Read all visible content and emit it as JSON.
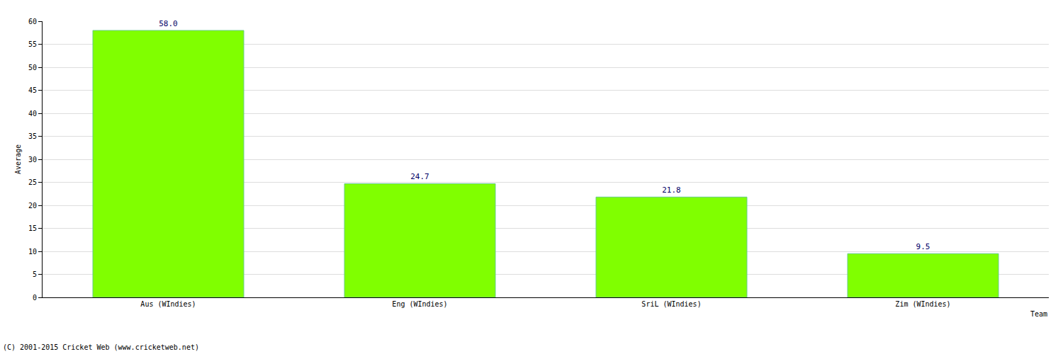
{
  "chart_data": {
    "type": "bar",
    "categories": [
      "Aus (WIndies)",
      "Eng (WIndies)",
      "SriL (WIndies)",
      "Zim (WIndies)"
    ],
    "values": [
      58.0,
      24.7,
      21.8,
      9.5
    ],
    "value_labels": [
      "58.0",
      "24.7",
      "21.8",
      "9.5"
    ],
    "data_labels": true,
    "color": "#80ff00",
    "xlabel": "Team",
    "ylabel": "Average",
    "ylim": [
      0,
      60
    ],
    "yticks": [
      0,
      5,
      10,
      15,
      20,
      25,
      30,
      35,
      40,
      45,
      50,
      55,
      60
    ],
    "grid": true,
    "annotations": [
      "(C) 2001-2015 Cricket Web (www.cricketweb.net)"
    ]
  }
}
